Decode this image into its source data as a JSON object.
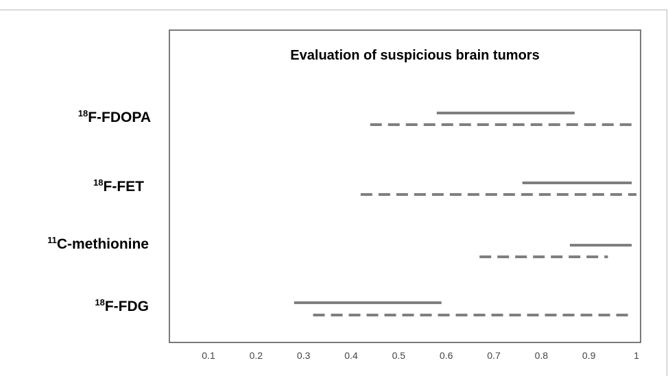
{
  "chart_data": {
    "type": "range-interval",
    "title": "Evaluation of suspicious brain tumors",
    "xlabel": "",
    "ylabel": "",
    "xlim": [
      0,
      1
    ],
    "xticks": [
      "0.1",
      "0.2",
      "0.3",
      "0.4",
      "0.5",
      "0.6",
      "0.7",
      "0.8",
      "0.9",
      "1"
    ],
    "grid": false,
    "categories": [
      {
        "sup": "18",
        "label": "F-FDOPA"
      },
      {
        "sup": "18",
        "label": "F-FET"
      },
      {
        "sup": "11",
        "label": "C-methionine"
      },
      {
        "sup": "18",
        "label": "F-FDG"
      }
    ],
    "series": [
      {
        "style": "solid",
        "color": "#7f7f7f",
        "ranges": [
          [
            0.58,
            0.87
          ],
          [
            0.76,
            0.99
          ],
          [
            0.86,
            0.99
          ],
          [
            0.28,
            0.59
          ]
        ]
      },
      {
        "style": "dashed",
        "color": "#7f7f7f",
        "ranges": [
          [
            0.44,
            1.0
          ],
          [
            0.42,
            1.0
          ],
          [
            0.67,
            0.94
          ],
          [
            0.32,
            0.99
          ]
        ]
      }
    ]
  }
}
